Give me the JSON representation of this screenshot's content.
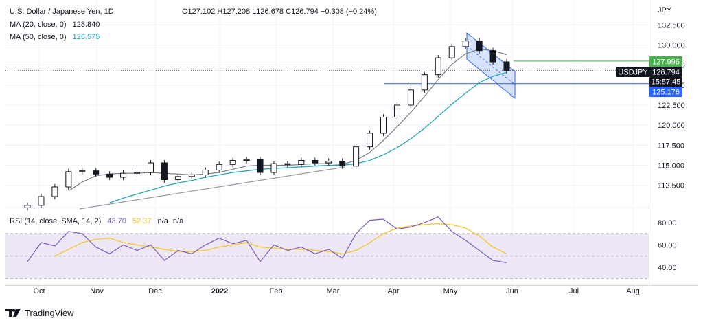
{
  "chart_data": {
    "type": "candlestick",
    "symbol_title": "U.S. Dollar / Japanese Yen, 1D",
    "ohlc": {
      "open_label": "O127.102",
      "high_label": "H127.208",
      "low_label": "L126.678",
      "close_label": "C126.794",
      "change_label": "−0.308 (−0.24%)"
    },
    "indicators": [
      {
        "label": "MA (20, close, 0)",
        "value": "128.840",
        "color": "#131722"
      },
      {
        "label": "MA (50, close, 0)",
        "value": "126.575",
        "color": "#26a6b8"
      }
    ],
    "price_axis": {
      "unit": "JPY",
      "ticks": [
        "132.500",
        "130.000",
        "127.500",
        "125.000",
        "122.500",
        "120.000",
        "117.500",
        "115.000",
        "112.500"
      ],
      "range": [
        109.9,
        133.9
      ]
    },
    "rsi_pane": {
      "label": "RSI (14, close, SMA, 14, 2)",
      "rsi_value": "43.70",
      "sma_value": "52.37",
      "na1": "n/a",
      "na2": "n/a",
      "ticks": [
        "80.00",
        "60.00",
        "40.00"
      ],
      "range": [
        27,
        91
      ],
      "band": [
        30,
        70
      ],
      "mid": 50,
      "rsi_color": "#7e57c2",
      "sma_color": "#f5c518",
      "band_fill": "#ede7f6"
    },
    "time_axis": [
      "Oct",
      "Nov",
      "Dec",
      "2022",
      "Feb",
      "Mar",
      "Apr",
      "May",
      "Jun",
      "Jul",
      "Aug"
    ],
    "price_labels": [
      {
        "text": "127.996",
        "bg": "#4caf50"
      },
      {
        "text": "USDJPY",
        "bg": "#131722"
      },
      {
        "text": "126.794",
        "bg": "#131722"
      },
      {
        "text": "15:57:45",
        "bg": "#131722"
      },
      {
        "text": "125.176",
        "bg": "#2962ff"
      }
    ],
    "levels": {
      "green_line": 127.996,
      "blue_line": 125.176,
      "last_price": 126.794
    },
    "x": [
      "2021-09-24",
      "2021-10-01",
      "2021-10-08",
      "2021-10-15",
      "2021-10-22",
      "2021-10-29",
      "2021-11-05",
      "2021-11-12",
      "2021-11-19",
      "2021-11-26",
      "2021-12-03",
      "2021-12-10",
      "2021-12-17",
      "2021-12-24",
      "2021-12-31",
      "2022-01-07",
      "2022-01-14",
      "2022-01-21",
      "2022-01-28",
      "2022-02-04",
      "2022-02-11",
      "2022-02-18",
      "2022-02-25",
      "2022-03-04",
      "2022-03-11",
      "2022-03-18",
      "2022-03-25",
      "2022-04-01",
      "2022-04-08",
      "2022-04-15",
      "2022-04-22",
      "2022-04-29",
      "2022-05-06",
      "2022-05-13",
      "2022-05-20",
      "2022-05-27"
    ],
    "close": [
      110.0,
      111.1,
      112.3,
      114.2,
      114.3,
      113.9,
      113.5,
      114.0,
      114.1,
      115.3,
      113.2,
      113.6,
      113.8,
      114.4,
      115.1,
      115.6,
      115.7,
      114.1,
      115.2,
      115.1,
      115.6,
      115.3,
      115.5,
      114.9,
      117.3,
      119.0,
      121.0,
      122.5,
      124.4,
      126.3,
      128.4,
      129.8,
      130.5,
      129.3,
      127.9,
      126.8
    ],
    "ma20": [
      null,
      null,
      null,
      111.8,
      112.9,
      113.7,
      113.9,
      114.0,
      114.0,
      114.1,
      114.0,
      113.9,
      113.8,
      113.9,
      114.1,
      114.5,
      114.9,
      115.0,
      115.0,
      115.0,
      115.1,
      115.2,
      115.2,
      115.1,
      115.6,
      116.6,
      118.1,
      119.8,
      121.6,
      123.6,
      125.7,
      127.6,
      128.9,
      129.5,
      129.3,
      128.8
    ],
    "ma50": [
      null,
      null,
      null,
      null,
      null,
      null,
      110.3,
      110.9,
      111.4,
      111.9,
      112.4,
      112.8,
      113.1,
      113.5,
      113.8,
      114.1,
      114.3,
      114.5,
      114.6,
      114.7,
      114.8,
      114.9,
      115.0,
      115.0,
      115.2,
      115.6,
      116.3,
      117.2,
      118.3,
      119.6,
      121.1,
      122.6,
      124.0,
      125.3,
      126.1,
      126.6
    ],
    "rsi": [
      45,
      62,
      59,
      72,
      70,
      58,
      52,
      60,
      55,
      60,
      46,
      55,
      52,
      60,
      66,
      61,
      64,
      45,
      60,
      55,
      58,
      52,
      56,
      48,
      70,
      82,
      83,
      74,
      76,
      80,
      85,
      72,
      64,
      55,
      46,
      44
    ],
    "rsi_sma": [
      null,
      null,
      50,
      56,
      62,
      65,
      66,
      62,
      60,
      58,
      56,
      54,
      54,
      55,
      58,
      60,
      62,
      58,
      57,
      56,
      56,
      55,
      54,
      52,
      55,
      62,
      70,
      75,
      77,
      78,
      79,
      78,
      75,
      68,
      58,
      52
    ]
  }
}
